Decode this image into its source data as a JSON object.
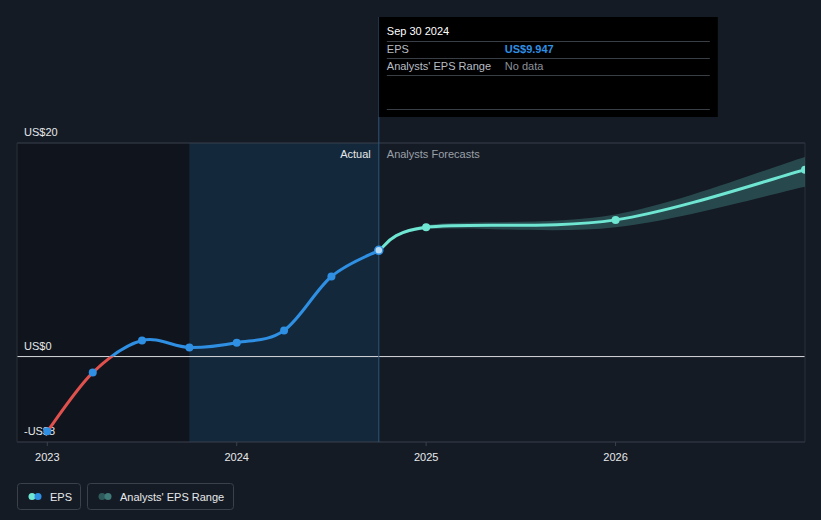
{
  "chart_data": {
    "type": "line",
    "x": [
      2023.0,
      2023.24,
      2023.5,
      2023.75,
      2024.0,
      2024.25,
      2024.5,
      2024.75,
      2025.0,
      2026.0,
      2027.0
    ],
    "series": [
      {
        "name": "EPS",
        "color": "#2f8fe3",
        "values": [
          -7.0,
          -1.5,
          1.5,
          0.85,
          1.3,
          2.45,
          7.5,
          9.947,
          null,
          null,
          null
        ]
      },
      {
        "name": "Analysts Forecasts",
        "color": "#6fe6d2",
        "values": [
          null,
          null,
          null,
          null,
          null,
          null,
          null,
          9.947,
          12.1,
          12.8,
          17.5
        ]
      }
    ],
    "range": {
      "name": "Analysts' EPS Range",
      "color": "#2e5a5c",
      "low": [
        null,
        null,
        null,
        null,
        null,
        null,
        null,
        9.947,
        11.9,
        12.1,
        15.9
      ],
      "high": [
        null,
        null,
        null,
        null,
        null,
        null,
        null,
        9.947,
        12.3,
        13.3,
        18.7
      ]
    },
    "xlim": [
      2022.84,
      2027.0
    ],
    "xticks": [
      2023,
      2024,
      2025,
      2026
    ],
    "ylim": [
      -8,
      20
    ],
    "yticks": [
      {
        "value": -8,
        "label": "-US$8"
      },
      {
        "value": 0,
        "label": "US$0"
      },
      {
        "value": 20,
        "label": "US$20"
      }
    ],
    "grid": true,
    "legend": "bottom-left",
    "annotations": {
      "actual": "Actual"
    },
    "tooltip": {
      "date": "Sep 30 2024",
      "label": "EPS",
      "value": "US$9.947",
      "range_label": "Analysts' EPS Range",
      "range_value": "No data"
    }
  }
}
